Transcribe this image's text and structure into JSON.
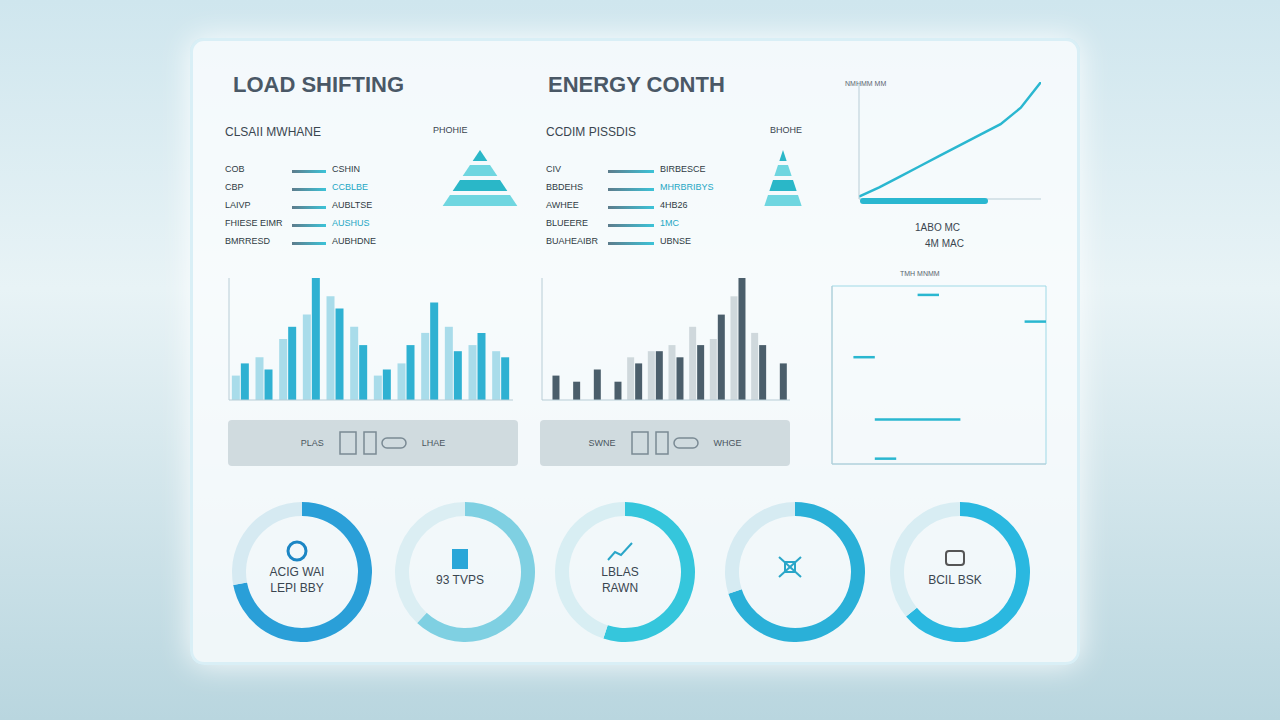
{
  "header": {
    "left_title": "LOAD SHIFTING",
    "center_title": "ENERGY CONTH",
    "right_caption": "NMHMM MM"
  },
  "lists": [
    {
      "title": "CLSAII MWHANE",
      "side_label": "PHOHIE",
      "rows": [
        [
          "COB",
          "CSHIN"
        ],
        [
          "CBP",
          "CCBLBE"
        ],
        [
          "LAIVP",
          "AUBLTSE"
        ],
        [
          "FHIESE EIMR",
          "AUSHUS"
        ],
        [
          "BMRRESD",
          "AUBHDNE"
        ]
      ]
    },
    {
      "title": "CCDIM PISSDIS",
      "side_label": "BHOHE",
      "rows": [
        [
          "CIV",
          "BIRBESCE"
        ],
        [
          "BBDEHS",
          "MHRBRIBYS"
        ],
        [
          "AWHEE",
          "4HB26"
        ],
        [
          "BLUEERE",
          "1MC"
        ],
        [
          "BUAHEAIBR",
          "UBNSE"
        ]
      ]
    }
  ],
  "toolbars": [
    [
      "PLAS",
      "LHAE"
    ],
    [
      "SWNE",
      "WHGE"
    ]
  ],
  "chart_data": [
    {
      "type": "bar",
      "categories": [
        null,
        null,
        null,
        null,
        null,
        null,
        null,
        null,
        null,
        null,
        null,
        null
      ],
      "ylim": [
        0,
        100
      ],
      "tick_labels": false,
      "grid": false,
      "series": [
        {
          "color": "#a9dcea",
          "values": [
            20,
            35,
            50,
            70,
            85,
            60,
            20,
            30,
            55,
            60,
            45,
            40
          ]
        },
        {
          "color": "#2fb1d2",
          "values": [
            30,
            25,
            60,
            100,
            75,
            45,
            25,
            45,
            80,
            40,
            55,
            35
          ]
        }
      ]
    },
    {
      "type": "bar",
      "categories": [
        null,
        null,
        null,
        null,
        null,
        null,
        null,
        null,
        null,
        null,
        null,
        null
      ],
      "ylim": [
        0,
        100
      ],
      "tick_labels": false,
      "grid": false,
      "series": [
        {
          "color": "#cfd8dc",
          "values": [
            0,
            0,
            0,
            0,
            35,
            40,
            45,
            60,
            50,
            85,
            55,
            0
          ]
        },
        {
          "color": "#4b5e6b",
          "values": [
            20,
            15,
            25,
            15,
            30,
            40,
            35,
            45,
            70,
            100,
            45,
            30
          ]
        }
      ]
    },
    {
      "type": "line",
      "title": "TMH MNMM",
      "x": [
        0,
        1,
        2,
        3,
        4,
        5,
        6,
        7,
        8,
        9,
        10
      ],
      "xlim": [
        0,
        10
      ],
      "xticks": [
        0,
        1,
        2,
        3,
        4,
        5,
        6,
        7,
        8,
        9,
        10
      ],
      "ylim": [
        0,
        100
      ],
      "yticks": [
        0,
        10,
        20,
        30,
        40,
        50,
        60,
        70,
        80,
        90,
        100
      ],
      "grid": true,
      "tick_labels": false,
      "marker": "none",
      "line_style": "solid",
      "series": [
        {
          "color": "#2ab7d0",
          "values": [
            null,
            null,
            null,
            null,
            95,
            95,
            null,
            null,
            null,
            null,
            null
          ]
        },
        {
          "color": "#2ab7d0",
          "values": [
            null,
            null,
            null,
            null,
            null,
            null,
            null,
            null,
            null,
            80,
            80
          ]
        },
        {
          "color": "#2ab7d0",
          "values": [
            null,
            60,
            60,
            null,
            null,
            null,
            null,
            null,
            null,
            null,
            null
          ]
        },
        {
          "color": "#2ab7d0",
          "values": [
            null,
            null,
            25,
            25,
            25,
            25,
            25,
            null,
            null,
            null,
            null
          ]
        },
        {
          "color": "#2ab7d0",
          "values": [
            null,
            null,
            3,
            3,
            null,
            null,
            null,
            null,
            null,
            null,
            null
          ]
        }
      ]
    },
    {
      "type": "line",
      "x": [
        0,
        1,
        2,
        3,
        4,
        5,
        6,
        7,
        8,
        9
      ],
      "xlim": [
        0,
        9
      ],
      "ylim": [
        0,
        100
      ],
      "tick_labels": false,
      "grid": false,
      "marker": "none",
      "color": "#2ab7d0",
      "values": [
        2,
        10,
        19,
        28,
        37,
        46,
        55,
        64,
        78,
        100
      ],
      "annotations": [
        "1ABO MC",
        "4M MAC"
      ]
    },
    {
      "type": "pie",
      "values": [
        72,
        28
      ],
      "colors": [
        "#2a9fd8",
        "#d6eaf2"
      ],
      "annotations": [
        "ACIG WAI",
        "LEPI BBY"
      ]
    },
    {
      "type": "pie",
      "values": [
        62,
        38
      ],
      "colors": [
        "#7fd0e2",
        "#dbeef3"
      ],
      "annotations": [
        "93 TVPS"
      ]
    },
    {
      "type": "pie",
      "values": [
        55,
        45
      ],
      "colors": [
        "#35c6dc",
        "#d8eef3"
      ],
      "annotations": [
        "LBLAS",
        "RAWN"
      ]
    },
    {
      "type": "pie",
      "values": [
        70,
        30
      ],
      "colors": [
        "#2ab0d8",
        "#d6ebf2"
      ]
    },
    {
      "type": "pie",
      "values": [
        64,
        36
      ],
      "colors": [
        "#2ab8e0",
        "#d8edf3"
      ],
      "annotations": [
        "BCIL BSK"
      ]
    }
  ]
}
